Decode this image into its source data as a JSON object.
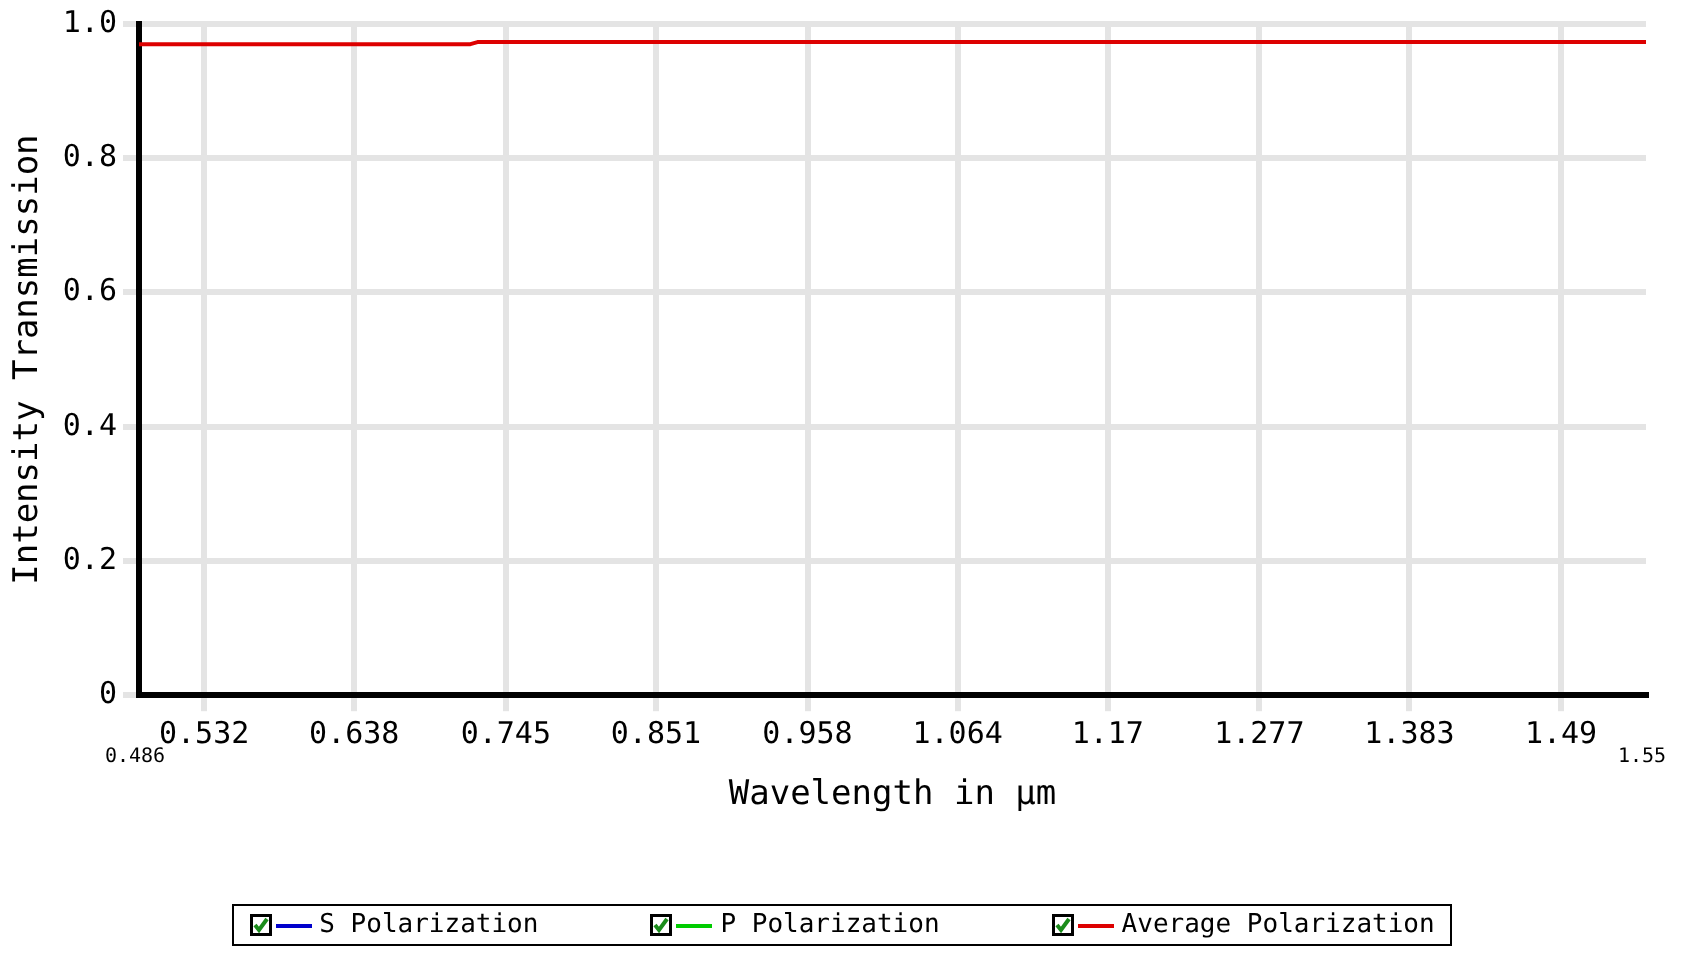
{
  "chart_data": {
    "type": "line",
    "xlabel": "Wavelength in µm",
    "ylabel": "Intensity Transmission",
    "x": [
      0.486,
      0.72,
      0.725,
      1.55
    ],
    "series": [
      {
        "name": "S Polarization",
        "color": "#0000cc",
        "values": [
          null,
          null,
          null,
          null
        ]
      },
      {
        "name": "P Polarization",
        "color": "#00cc00",
        "values": [
          null,
          null,
          null,
          null
        ]
      },
      {
        "name": "Average Polarization",
        "color": "#dd0000",
        "values": [
          0.97,
          0.97,
          0.973,
          0.973
        ]
      }
    ],
    "xlim": [
      0.486,
      1.55
    ],
    "xticks": [
      0.532,
      0.638,
      0.745,
      0.851,
      0.958,
      1.064,
      1.17,
      1.277,
      1.383,
      1.49
    ],
    "ylim": [
      0,
      1.0
    ],
    "yticks": [
      0,
      {
        "value": 0.2,
        "label": "0.2"
      },
      {
        "value": 0.4,
        "label": "0.4"
      },
      {
        "value": 0.6,
        "label": "0.6"
      },
      {
        "value": 0.8,
        "label": "0.8"
      },
      {
        "value": 1.0,
        "label": "1.0"
      }
    ],
    "annotations": [
      "0.486",
      "1.55"
    ],
    "grid": true,
    "legend": "bottom",
    "marker": "none",
    "line_style": "solid"
  }
}
